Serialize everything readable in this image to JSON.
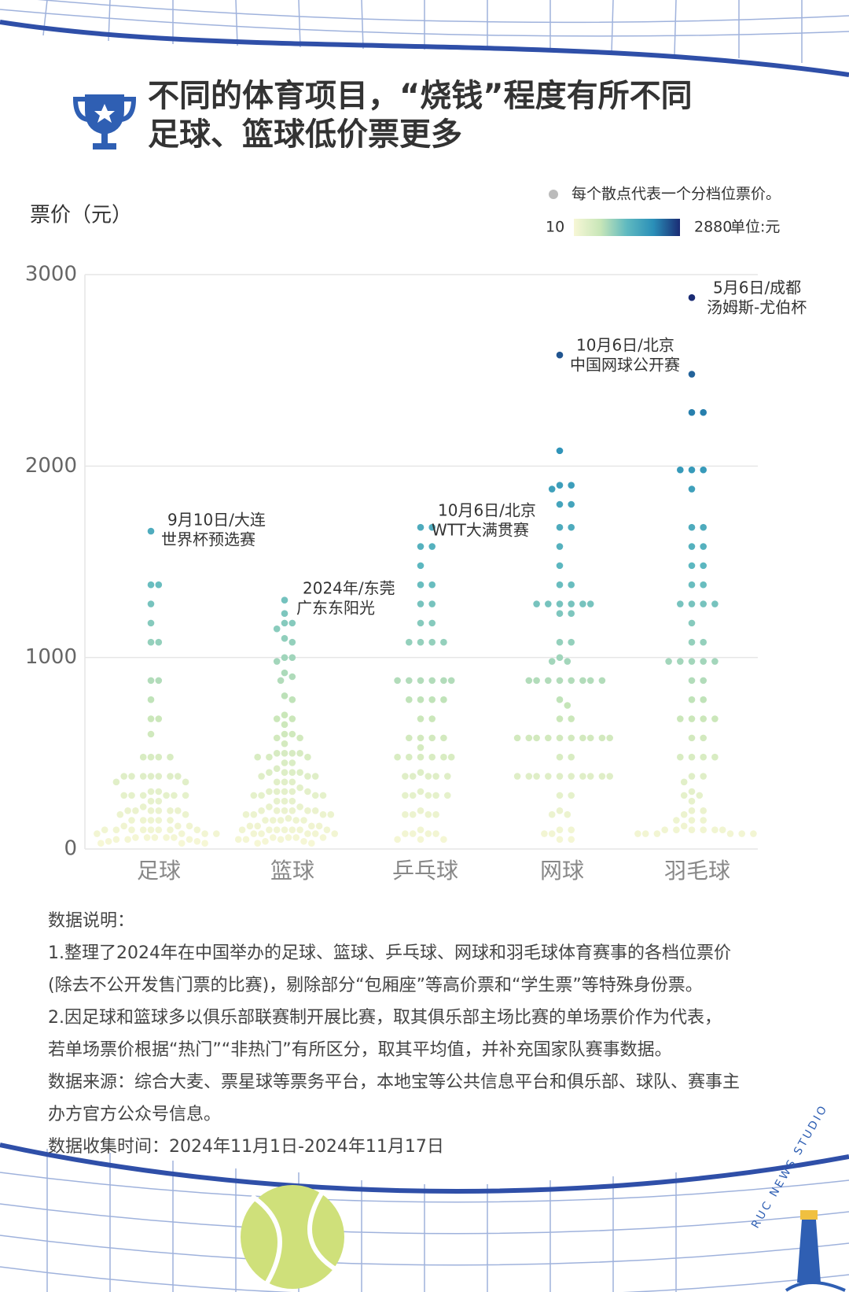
{
  "header": {
    "title_lines": [
      "不同的体育项目，“烧钱”程度有所不同",
      "足球、篮球低价票更多"
    ]
  },
  "chart_data": {
    "type": "beeswarm",
    "y_label": "票价（元）",
    "categories": [
      "足球",
      "篮球",
      "乒乓球",
      "网球",
      "羽毛球"
    ],
    "values": [
      [
        1660,
        1380,
        1380,
        1280,
        1180,
        1080,
        1080,
        880,
        880,
        780,
        680,
        680,
        600,
        480,
        480,
        480,
        480,
        380,
        380,
        380,
        380,
        380,
        380,
        380,
        350,
        350,
        300,
        300,
        280,
        280,
        280,
        280,
        280,
        280,
        250,
        250,
        220,
        200,
        200,
        200,
        200,
        200,
        200,
        180,
        180,
        150,
        150,
        150,
        150,
        150,
        120,
        120,
        120,
        100,
        100,
        100,
        100,
        100,
        100,
        100,
        100,
        80,
        80,
        80,
        80,
        60,
        60,
        60,
        60,
        60,
        50,
        50,
        50,
        40,
        40,
        30,
        30,
        30
      ],
      [
        1300,
        1230,
        1180,
        1180,
        1150,
        1100,
        1080,
        1000,
        1000,
        980,
        920,
        900,
        880,
        800,
        780,
        700,
        680,
        680,
        650,
        600,
        600,
        580,
        580,
        550,
        500,
        500,
        500,
        500,
        480,
        480,
        480,
        450,
        450,
        420,
        400,
        400,
        400,
        400,
        380,
        380,
        380,
        350,
        350,
        350,
        320,
        300,
        300,
        300,
        300,
        300,
        280,
        280,
        280,
        280,
        250,
        250,
        250,
        220,
        220,
        200,
        200,
        200,
        200,
        200,
        200,
        180,
        180,
        180,
        180,
        160,
        150,
        150,
        150,
        150,
        150,
        120,
        120,
        120,
        120,
        100,
        100,
        100,
        100,
        100,
        100,
        100,
        80,
        80,
        80,
        80,
        80,
        60,
        60,
        60,
        60,
        50,
        50,
        50,
        40,
        40,
        30,
        30
      ],
      [
        1680,
        1680,
        1580,
        1580,
        1480,
        1380,
        1380,
        1280,
        1280,
        1180,
        1180,
        1080,
        1080,
        1080,
        1080,
        880,
        880,
        880,
        880,
        880,
        880,
        780,
        780,
        780,
        780,
        680,
        680,
        580,
        580,
        580,
        580,
        530,
        480,
        480,
        480,
        480,
        480,
        480,
        400,
        380,
        380,
        380,
        380,
        380,
        300,
        280,
        280,
        280,
        280,
        280,
        200,
        180,
        180,
        180,
        180,
        100,
        80,
        80,
        80,
        80,
        50,
        50,
        50
      ],
      [
        2580,
        2080,
        1900,
        1900,
        1880,
        1800,
        1800,
        1680,
        1680,
        1580,
        1480,
        1380,
        1380,
        1280,
        1280,
        1280,
        1280,
        1280,
        1280,
        1230,
        1230,
        1080,
        1080,
        1000,
        980,
        980,
        880,
        880,
        880,
        880,
        880,
        880,
        880,
        880,
        780,
        750,
        680,
        680,
        580,
        580,
        580,
        580,
        580,
        580,
        580,
        580,
        580,
        580,
        480,
        480,
        380,
        380,
        380,
        380,
        380,
        380,
        380,
        380,
        380,
        380,
        280,
        280,
        200,
        180,
        180,
        100,
        100,
        80,
        80,
        50,
        50
      ],
      [
        2880,
        2480,
        2280,
        2280,
        1980,
        1980,
        1980,
        1880,
        1680,
        1680,
        1580,
        1580,
        1480,
        1480,
        1380,
        1380,
        1280,
        1280,
        1280,
        1280,
        1180,
        1080,
        1080,
        980,
        980,
        980,
        980,
        980,
        880,
        880,
        780,
        780,
        680,
        680,
        680,
        680,
        580,
        580,
        480,
        480,
        480,
        480,
        380,
        380,
        350,
        300,
        280,
        280,
        250,
        200,
        200,
        180,
        150,
        150,
        150,
        120,
        100,
        100,
        100,
        100,
        100,
        100,
        80,
        80,
        80,
        80,
        80,
        80
      ]
    ],
    "ylim": [
      0,
      3000
    ],
    "yticks": [
      0,
      1000,
      2000,
      3000
    ],
    "grid": true,
    "legend": {
      "note": "每个散点代表一个分档位票价。",
      "marker_color": "#bbbbbb"
    },
    "color_scale": {
      "domain": [
        10,
        2880
      ],
      "colors": [
        "#f7f7d6",
        "#c8e6b8",
        "#5fb9c0",
        "#2a8fb8",
        "#1a2c74"
      ],
      "unit": "单位:元"
    },
    "annotations": [
      {
        "lines": [
          "9月10日/大连",
          "世界杯预选赛"
        ]
      },
      {
        "lines": [
          "2024年/东莞",
          "广东东阳光"
        ]
      },
      {
        "lines": [
          "10月6日/北京",
          "WTT大满贯赛"
        ]
      },
      {
        "lines": [
          "10月6日/北京",
          "中国网球公开赛"
        ]
      },
      {
        "lines": [
          "5月6日/成都",
          "汤姆斯-尤伯杯"
        ]
      }
    ]
  },
  "notes": {
    "lines": [
      "数据说明：",
      "1.整理了2024年在中国举办的足球、篮球、乒乓球、网球和羽毛球体育赛事的各档位票价",
      "(除去不公开发售门票的比赛)，剔除部分“包厢座”等高价票和“学生票”等特殊身份票。",
      "2.因足球和篮球多以俱乐部联赛制开展比赛，取其俱乐部主场比赛的单场票价作为代表，",
      "若单场票价根据“热门”“非热门”有所区分，取其平均值，并补充国家队赛事数据。",
      "数据来源：综合大麦、票星球等票务平台，本地宝等公共信息平台和俱乐部、球队、赛事主",
      "办方官方公众号信息。",
      "数据收集时间：2024年11月1日-2024年11月17日"
    ]
  },
  "footer": {
    "studio": "RUC NEWS STUDIO"
  }
}
